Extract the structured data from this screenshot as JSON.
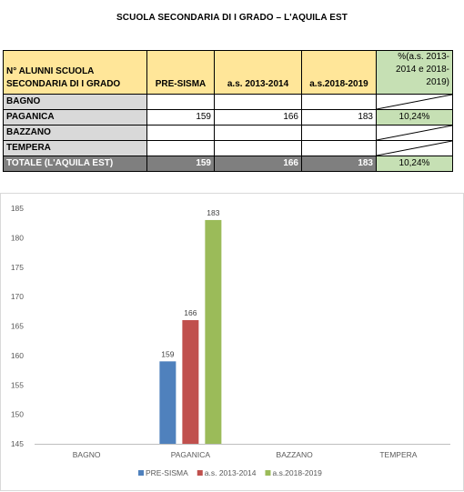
{
  "title": "SCUOLA SECONDARIA DI I GRADO – L'AQUILA EST",
  "table": {
    "headers": [
      "N° ALUNNI SCUOLA SECONDARIA DI I GRADO",
      "PRE-SISMA",
      "a.s. 2013-2014",
      "a.s.2018-2019",
      "%(a.s. 2013-2014 e 2018-2019)"
    ],
    "rows": [
      {
        "label": "BAGNO",
        "v1": "",
        "v2": "",
        "v3": "",
        "pct": ""
      },
      {
        "label": "PAGANICA",
        "v1": "159",
        "v2": "166",
        "v3": "183",
        "pct": "10,24%"
      },
      {
        "label": "BAZZANO",
        "v1": "",
        "v2": "",
        "v3": "",
        "pct": ""
      },
      {
        "label": "TEMPERA",
        "v1": "",
        "v2": "",
        "v3": "",
        "pct": ""
      }
    ],
    "total": {
      "label": "TOTALE (L'AQUILA EST)",
      "v1": "159",
      "v2": "166",
      "v3": "183",
      "pct": "10,24%"
    }
  },
  "chart_data": {
    "type": "bar",
    "categories": [
      "BAGNO",
      "PAGANICA",
      "BAZZANO",
      "TEMPERA"
    ],
    "series": [
      {
        "name": "PRE-SISMA",
        "color": "#4f81bd",
        "values": [
          null,
          159,
          null,
          null
        ]
      },
      {
        "name": "a.s. 2013-2014",
        "color": "#c0504d",
        "values": [
          null,
          166,
          null,
          null
        ]
      },
      {
        "name": "a.s.2018-2019",
        "color": "#9bbb59",
        "values": [
          null,
          183,
          null,
          null
        ]
      }
    ],
    "ylim": [
      145,
      185
    ],
    "yticks": [
      145,
      150,
      155,
      160,
      165,
      170,
      175,
      180,
      185
    ],
    "grid": false,
    "legend": "bottom",
    "data_labels": true
  }
}
